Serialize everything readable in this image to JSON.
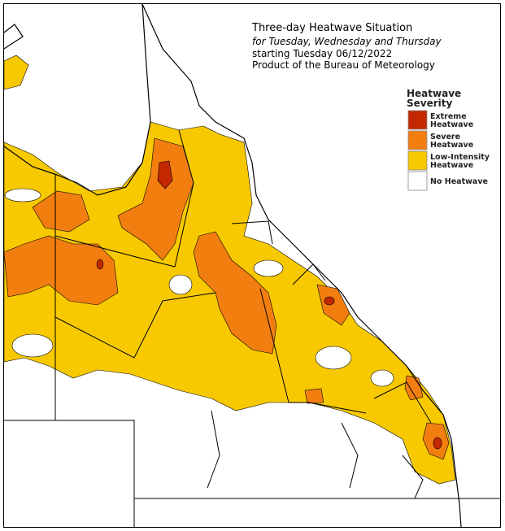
{
  "header": {
    "title": "Three-day Heatwave Situation",
    "subtitle": "for Tuesday, Wednesday and Thursday",
    "start": "starting Tuesday 06/12/2022",
    "credit": "Product of the Bureau of Meteorology"
  },
  "legend": {
    "title": [
      "Heatwave",
      "Severity"
    ],
    "items": [
      {
        "label": [
          "Extreme",
          "Heatwave"
        ],
        "color": "#c42800"
      },
      {
        "label": [
          "Severe",
          "Heatwave"
        ],
        "color": "#f27e10"
      },
      {
        "label": [
          "Low-Intensity",
          "Heatwave"
        ],
        "color": "#f8c900"
      },
      {
        "label": [
          "No Heatwave"
        ],
        "color": "#ffffff"
      }
    ]
  }
}
